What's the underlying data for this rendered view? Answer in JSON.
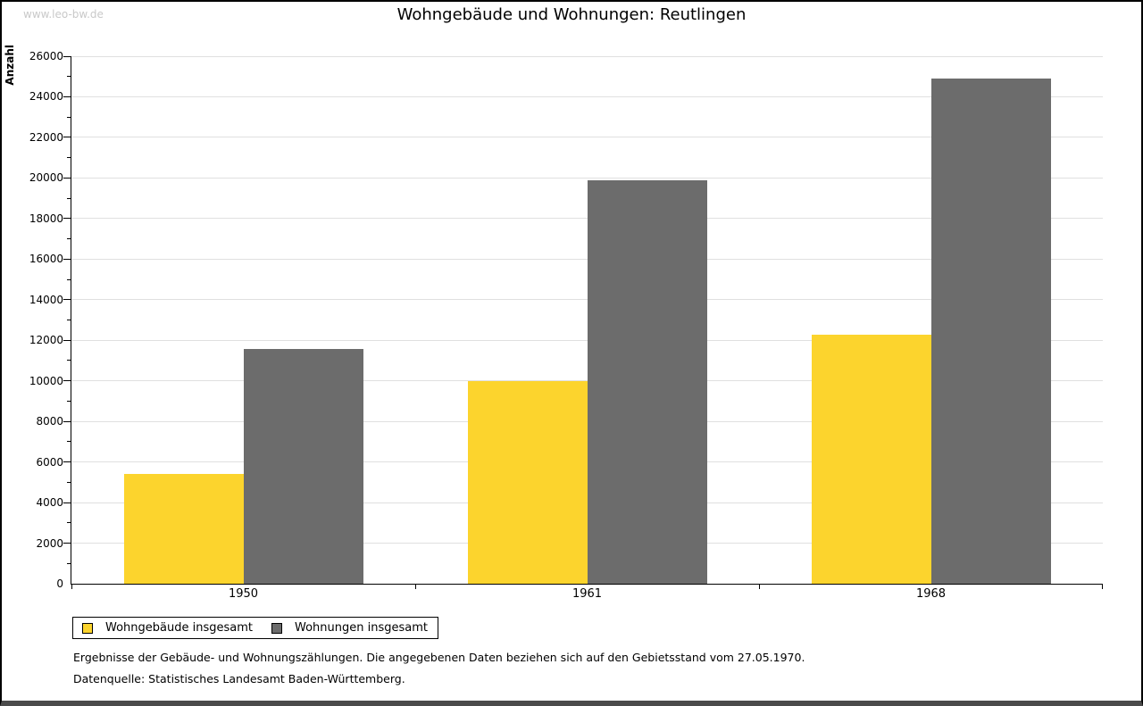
{
  "watermark": "www.leo-bw.de",
  "title": "Wohngebäude und Wohnungen: Reutlingen",
  "chart_data": {
    "type": "bar",
    "title": "Wohngebäude und Wohnungen: Reutlingen",
    "xlabel": "",
    "ylabel": "Anzahl",
    "categories": [
      "1950",
      "1961",
      "1968"
    ],
    "series": [
      {
        "name": "Wohngebäude insgesamt",
        "color": "#fcd42d",
        "values": [
          5425,
          9975,
          12275
        ]
      },
      {
        "name": "Wohnungen insgesamt",
        "color": "#6c6c6c",
        "values": [
          11550,
          19900,
          24900
        ]
      }
    ],
    "ylim": [
      0,
      26000
    ],
    "yticks": [
      0,
      2000,
      4000,
      6000,
      8000,
      10000,
      12000,
      14000,
      16000,
      18000,
      20000,
      22000,
      24000,
      26000
    ],
    "yminor_step": 1000,
    "grid": true,
    "legend_position": "bottom-left"
  },
  "legend": {
    "items": [
      {
        "label": "Wohngebäude insgesamt",
        "color": "#fcd42d"
      },
      {
        "label": "Wohnungen insgesamt",
        "color": "#6c6c6c"
      }
    ]
  },
  "footer": {
    "line1": "Ergebnisse der Gebäude- und Wohnungszählungen. Die angegebenen Daten beziehen sich auf den Gebietsstand vom 27.05.1970.",
    "line2": "Datenquelle: Statistisches Landesamt Baden-Württemberg."
  },
  "colors": {
    "series1": "#fcd42d",
    "series2": "#6c6c6c",
    "gridline": "#e0e0e0",
    "axis": "#000000",
    "watermark": "#c9c9c9",
    "frame": "#000000"
  }
}
